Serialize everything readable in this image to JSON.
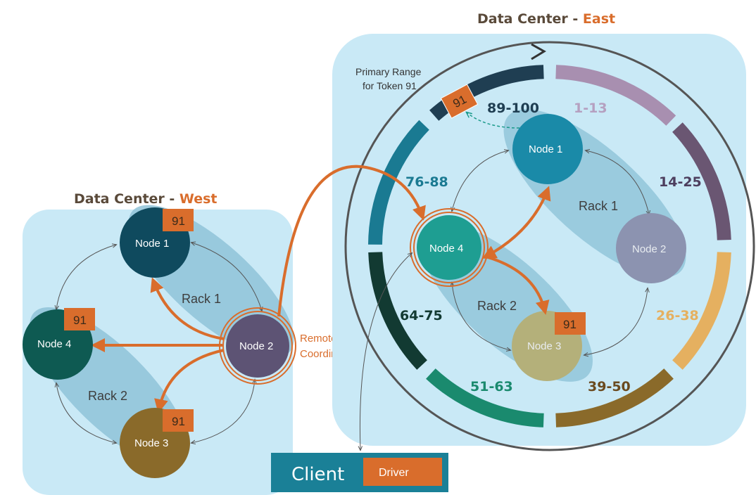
{
  "west": {
    "title": "Data Center - ",
    "title_accent": "West",
    "nodes": {
      "node1": "Node 1",
      "node2": "Node 2",
      "node3": "Node 3",
      "node4": "Node 4"
    },
    "rack1": "Rack 1",
    "rack2": "Rack 2",
    "badge": "91",
    "coordinator_line1": "Remote",
    "coordinator_line2": "Coordinator"
  },
  "east": {
    "title": "Data Center - ",
    "title_accent": "East",
    "nodes": {
      "node1": "Node 1",
      "node2": "Node 2",
      "node3": "Node 3",
      "node4": "Node 4"
    },
    "rack1": "Rack 1",
    "rack2": "Rack 2",
    "badge": "91",
    "ring_badge": "91",
    "primary_range_line1": "Primary Range",
    "primary_range_line2": "for Token 91",
    "ranges": {
      "r1": "89-100",
      "r2": "1-13",
      "r3": "14-25",
      "r4": "26-38",
      "r5": "39-50",
      "r6": "51-63",
      "r7": "64-75",
      "r8": "76-88"
    }
  },
  "client": {
    "label": "Client",
    "driver": "Driver"
  },
  "colors": {
    "accent": "#d96d2c",
    "panel": "#c9e9f6",
    "rack": "#8fc3d8",
    "west_node1": "#0f4a5e",
    "west_node2": "#5d5374",
    "west_node3": "#8a6a2a",
    "west_node4": "#0e5a52",
    "east_node1": "#1a8aa8",
    "east_node2": "#8c93b0",
    "east_node3": "#b4b07a",
    "east_node4": "#1e9e92",
    "client_bg": "#1a8097"
  }
}
